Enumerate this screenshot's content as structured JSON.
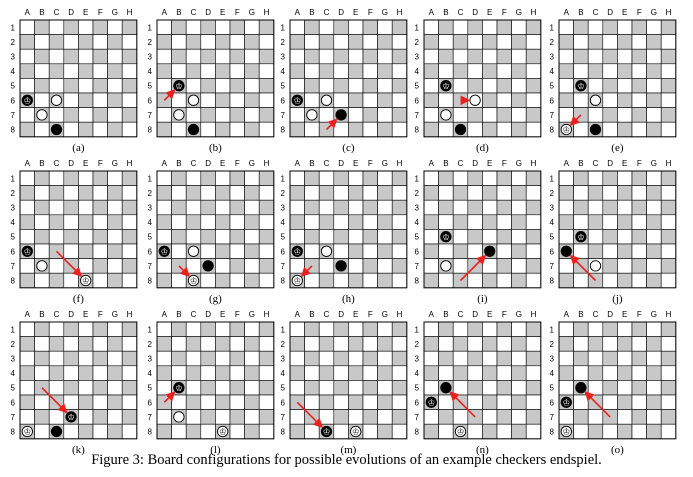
{
  "caption": "Figure 3: Board configurations for possible evolutions of an example checkers endspiel.",
  "columns": [
    "A",
    "B",
    "C",
    "D",
    "E",
    "F",
    "G",
    "H"
  ],
  "rows": [
    "1",
    "2",
    "3",
    "4",
    "5",
    "6",
    "7",
    "8"
  ],
  "king_symbol": "♔",
  "colors": {
    "dark_square": "#c8c8c8",
    "light_square": "#ffffff",
    "grid": "#000000",
    "arrow": "#e8231f"
  },
  "boards": [
    {
      "label": "(a)",
      "pieces": [
        {
          "square": "A6",
          "color": "black",
          "king": true
        },
        {
          "square": "C6",
          "color": "white",
          "king": false
        },
        {
          "square": "B7",
          "color": "white",
          "king": false
        },
        {
          "square": "C8",
          "color": "black",
          "king": false
        }
      ],
      "arrows": []
    },
    {
      "label": "(b)",
      "pieces": [
        {
          "square": "B5",
          "color": "black",
          "king": true
        },
        {
          "square": "C6",
          "color": "white",
          "king": false
        },
        {
          "square": "B7",
          "color": "white",
          "king": false
        },
        {
          "square": "C8",
          "color": "black",
          "king": false
        }
      ],
      "arrows": [
        {
          "from": "A6",
          "to": "B5"
        }
      ]
    },
    {
      "label": "(c)",
      "pieces": [
        {
          "square": "A6",
          "color": "black",
          "king": true
        },
        {
          "square": "C6",
          "color": "white",
          "king": false
        },
        {
          "square": "B7",
          "color": "white",
          "king": false
        },
        {
          "square": "D7",
          "color": "black",
          "king": false
        }
      ],
      "arrows": [
        {
          "from": "C8",
          "to": "D7"
        }
      ]
    },
    {
      "label": "(d)",
      "pieces": [
        {
          "square": "B5",
          "color": "black",
          "king": true
        },
        {
          "square": "D6",
          "color": "white",
          "king": false
        },
        {
          "square": "B7",
          "color": "white",
          "king": false
        },
        {
          "square": "C8",
          "color": "black",
          "king": false
        }
      ],
      "arrows": [
        {
          "from": "C6",
          "to": "D6"
        }
      ]
    },
    {
      "label": "(e)",
      "pieces": [
        {
          "square": "B5",
          "color": "black",
          "king": true
        },
        {
          "square": "C6",
          "color": "white",
          "king": false
        },
        {
          "square": "A8",
          "color": "white",
          "king": true
        },
        {
          "square": "C8",
          "color": "black",
          "king": false
        }
      ],
      "arrows": [
        {
          "from": "B7",
          "to": "A8"
        }
      ]
    },
    {
      "label": "(f)",
      "pieces": [
        {
          "square": "A6",
          "color": "black",
          "king": true
        },
        {
          "square": "B7",
          "color": "white",
          "king": false
        },
        {
          "square": "E8",
          "color": "white",
          "king": true
        }
      ],
      "arrows": [
        {
          "from": "C6",
          "to": "E8"
        }
      ]
    },
    {
      "label": "(g)",
      "pieces": [
        {
          "square": "A6",
          "color": "black",
          "king": true
        },
        {
          "square": "C6",
          "color": "white",
          "king": false
        },
        {
          "square": "D7",
          "color": "black",
          "king": false
        },
        {
          "square": "C8",
          "color": "white",
          "king": true
        }
      ],
      "arrows": [
        {
          "from": "B7",
          "to": "C8"
        }
      ]
    },
    {
      "label": "(h)",
      "pieces": [
        {
          "square": "A6",
          "color": "black",
          "king": true
        },
        {
          "square": "C6",
          "color": "white",
          "king": false
        },
        {
          "square": "D7",
          "color": "black",
          "king": false
        },
        {
          "square": "A8",
          "color": "white",
          "king": true
        }
      ],
      "arrows": [
        {
          "from": "B7",
          "to": "A8"
        }
      ]
    },
    {
      "label": "(i)",
      "pieces": [
        {
          "square": "B5",
          "color": "black",
          "king": true
        },
        {
          "square": "E6",
          "color": "black",
          "king": false
        },
        {
          "square": "B7",
          "color": "white",
          "king": false
        }
      ],
      "arrows": [
        {
          "from": "C8",
          "to": "E6"
        }
      ]
    },
    {
      "label": "(j)",
      "pieces": [
        {
          "square": "B5",
          "color": "black",
          "king": true
        },
        {
          "square": "A6",
          "color": "black",
          "king": false
        },
        {
          "square": "C7",
          "color": "white",
          "king": false
        }
      ],
      "arrows": [
        {
          "from": "C8",
          "to": "A6"
        }
      ]
    },
    {
      "label": "(k)",
      "pieces": [
        {
          "square": "D7",
          "color": "black",
          "king": true
        },
        {
          "square": "A8",
          "color": "white",
          "king": true
        },
        {
          "square": "C8",
          "color": "black",
          "king": false
        }
      ],
      "arrows": [
        {
          "from": "B5",
          "to": "D7"
        }
      ]
    },
    {
      "label": "(l)",
      "pieces": [
        {
          "square": "B5",
          "color": "black",
          "king": true
        },
        {
          "square": "B7",
          "color": "white",
          "king": false
        },
        {
          "square": "E8",
          "color": "white",
          "king": true
        }
      ],
      "arrows": [
        {
          "from": "A6",
          "to": "B5"
        }
      ]
    },
    {
      "label": "(m)",
      "pieces": [
        {
          "square": "C8",
          "color": "black",
          "king": true
        },
        {
          "square": "E8",
          "color": "white",
          "king": true
        }
      ],
      "arrows": [
        {
          "from": "A6",
          "to": "C8"
        }
      ]
    },
    {
      "label": "(n)",
      "pieces": [
        {
          "square": "B5",
          "color": "black",
          "king": false
        },
        {
          "square": "A6",
          "color": "black",
          "king": true
        },
        {
          "square": "C8",
          "color": "white",
          "king": true
        }
      ],
      "arrows": [
        {
          "from": "D7",
          "to": "B5"
        }
      ]
    },
    {
      "label": "(o)",
      "pieces": [
        {
          "square": "B5",
          "color": "black",
          "king": false
        },
        {
          "square": "A6",
          "color": "black",
          "king": true
        },
        {
          "square": "A8",
          "color": "white",
          "king": true
        }
      ],
      "arrows": [
        {
          "from": "D7",
          "to": "B5"
        }
      ]
    }
  ]
}
